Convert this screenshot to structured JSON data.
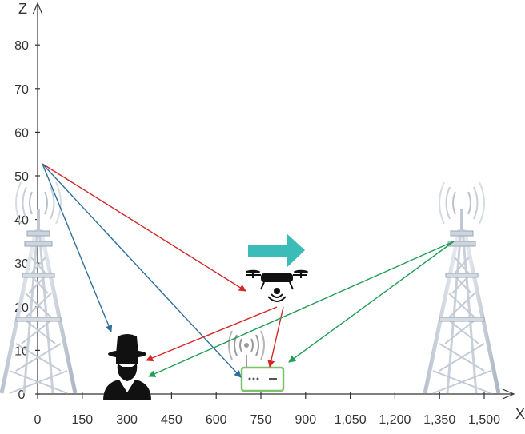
{
  "axes": {
    "z_label": "Z",
    "x_label": "X",
    "z_ticks": [
      "0",
      "10",
      "20",
      "30",
      "40",
      "50",
      "60",
      "70",
      "80"
    ],
    "x_ticks": [
      "0",
      "150",
      "300",
      "450",
      "600",
      "750",
      "900",
      "1,050",
      "1,200",
      "1,350",
      "1,500"
    ]
  },
  "colors": {
    "axis": "#333333",
    "jammer_link": "#d62728",
    "legit_link_left": "#2e6f9e",
    "legit_link_right": "#1f9d55",
    "motion_arrow": "#26b5b0",
    "ap_box": "#7cc36b",
    "tower": "#d7dde6"
  },
  "icons": {
    "left_tower": "cell-tower-icon",
    "right_tower": "cell-tower-icon",
    "drone": "drone-icon",
    "eavesdropper": "spy-icon",
    "access_point": "wifi-router-icon",
    "motion": "right-arrow-icon"
  }
}
